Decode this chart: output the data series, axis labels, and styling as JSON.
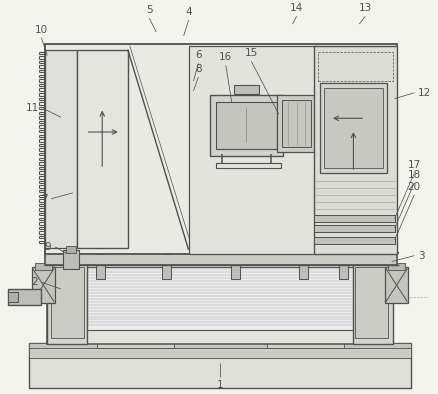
{
  "bg": "#f4f4ef",
  "lc": "#505050",
  "lw": 0.8,
  "figsize": [
    4.38,
    3.94
  ],
  "dpi": 100,
  "leaders": [
    [
      "1",
      220,
      365,
      220,
      380
    ],
    [
      "2",
      58,
      290,
      38,
      283
    ],
    [
      "3",
      395,
      262,
      418,
      256
    ],
    [
      "4",
      183,
      32,
      188,
      16
    ],
    [
      "5",
      155,
      28,
      148,
      14
    ],
    [
      "6",
      193,
      78,
      198,
      60
    ],
    [
      "7",
      70,
      192,
      48,
      198
    ],
    [
      "8",
      193,
      88,
      198,
      74
    ],
    [
      "9",
      64,
      254,
      52,
      247
    ],
    [
      "10",
      44,
      52,
      38,
      34
    ],
    [
      "11",
      58,
      115,
      40,
      106
    ],
    [
      "12",
      398,
      96,
      418,
      90
    ],
    [
      "13",
      362,
      20,
      368,
      12
    ],
    [
      "14",
      294,
      20,
      298,
      12
    ],
    [
      "15",
      280,
      112,
      252,
      58
    ],
    [
      "16",
      232,
      100,
      226,
      62
    ],
    [
      "17",
      398,
      218,
      418,
      172
    ],
    [
      "18",
      398,
      228,
      418,
      182
    ],
    [
      "20",
      398,
      240,
      418,
      194
    ]
  ]
}
